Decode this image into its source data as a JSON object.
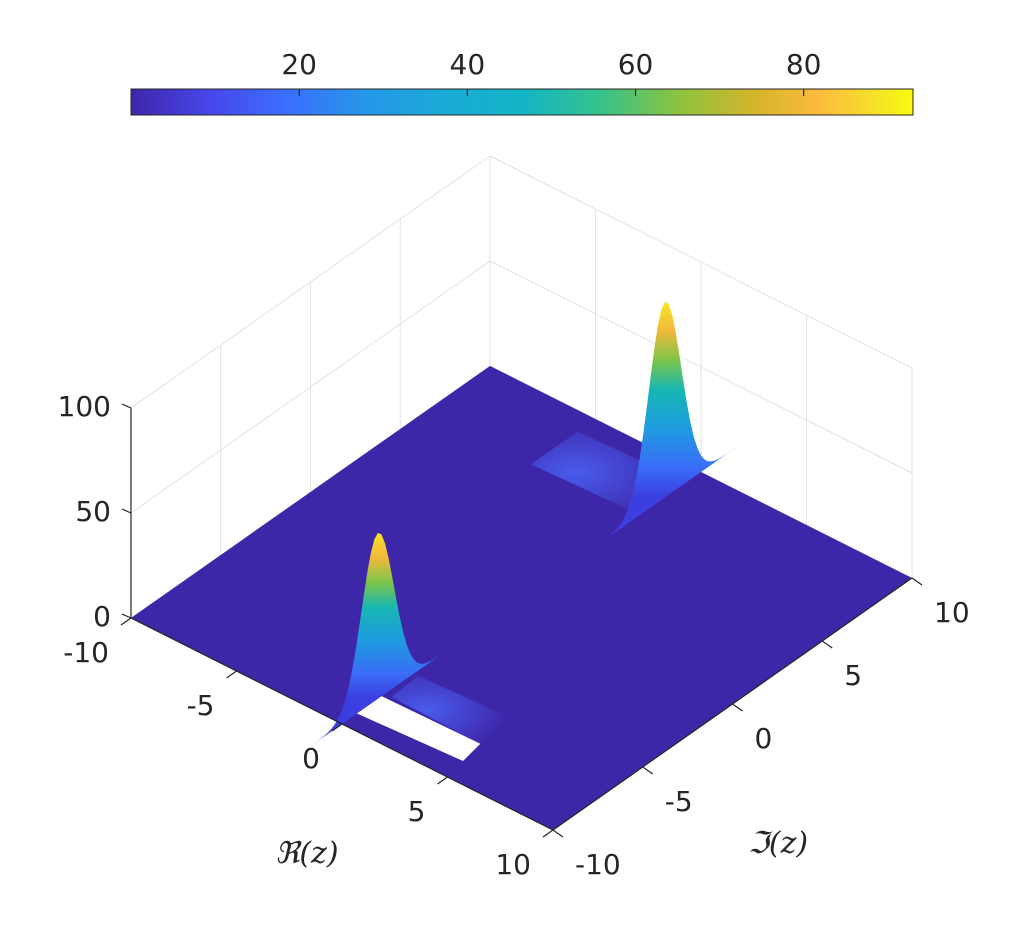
{
  "chart_data": {
    "type": "surface",
    "title": "",
    "xlabel": "ℜ(z)",
    "ylabel": "ℑ(z)",
    "zlabel": "",
    "xlim": [
      -10,
      10
    ],
    "ylim": [
      -10,
      10
    ],
    "zlim": [
      0,
      100
    ],
    "x_ticks": [
      "-10",
      "-5",
      "0",
      "5",
      "10"
    ],
    "y_ticks": [
      "-10",
      "-5",
      "0",
      "5",
      "10"
    ],
    "z_ticks": [
      "0",
      "50",
      "100"
    ],
    "grid": true,
    "view": "isometric-like (az≈-45°, el≈30°)",
    "colormap": "parula",
    "colorbar": {
      "location": "top",
      "range": [
        0,
        93
      ],
      "ticks": [
        "20",
        "40",
        "60",
        "80"
      ]
    },
    "peaks": [
      {
        "x": 0,
        "y": -8,
        "height": 79,
        "description": "sharp peak with shallow trough along +x"
      },
      {
        "x": 0,
        "y": 8,
        "height": 93,
        "description": "sharp peak with shallow ridge along -x"
      }
    ],
    "baseline_value": 0
  },
  "colors": {
    "surface_base": "#3e26a8",
    "colormap_stops": [
      "#3e26a8",
      "#4746eb",
      "#3b6ffd",
      "#2597e8",
      "#13b5c6",
      "#1cc3a0",
      "#5fc75f",
      "#b9bb30",
      "#f9b83d",
      "#f6de26",
      "#f9fb0e"
    ]
  }
}
